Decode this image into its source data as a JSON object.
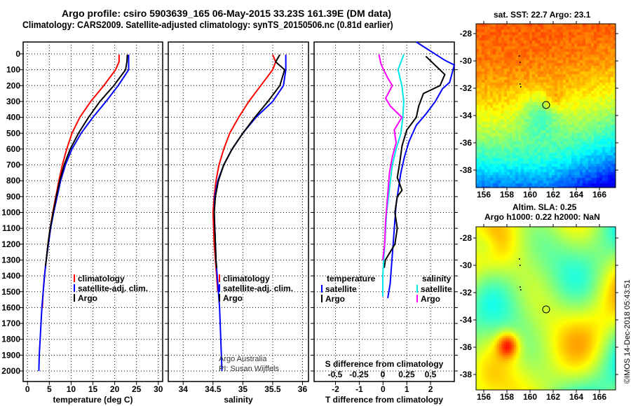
{
  "title_line1": "Argo profile: csiro 5903639_165 06-May-2015 33.23S 161.39E (DM data)",
  "title_line2": "Climatology: CARS2009. Satellite-adjusted climatology: synTS_20150506.nc (0.81d earlier)",
  "colors": {
    "climatology": "#ff0000",
    "satellite": "#0000ff",
    "argo": "#000000",
    "sal_satellite": "#00e5e5",
    "sal_argo": "#ff00ff"
  },
  "chart_data": [
    {
      "type": "line",
      "title": "temperature",
      "xlabel": "temperature (deg C)",
      "ylabel": "",
      "xlim": [
        -1,
        31
      ],
      "ylim": [
        2130,
        -75
      ],
      "xticks": [
        0,
        5,
        10,
        15,
        20,
        25,
        30
      ],
      "yticks": [
        0,
        100,
        200,
        300,
        400,
        500,
        600,
        700,
        800,
        900,
        1000,
        1100,
        1200,
        1300,
        1400,
        1500,
        1600,
        1700,
        1800,
        1900,
        2000
      ],
      "legend": [
        "climatology",
        "satellite-adj. clim.",
        "Argo"
      ],
      "series": [
        {
          "name": "climatology",
          "color": "#ff0000",
          "points": [
            [
              21,
              5
            ],
            [
              21,
              50
            ],
            [
              20.2,
              100
            ],
            [
              17.5,
              200
            ],
            [
              14.5,
              300
            ],
            [
              12,
              400
            ],
            [
              10.2,
              500
            ],
            [
              9,
              600
            ],
            [
              8,
              700
            ],
            [
              7.2,
              800
            ],
            [
              6.5,
              900
            ],
            [
              5.8,
              1000
            ],
            [
              5.2,
              1100
            ],
            [
              4.7,
              1200
            ],
            [
              4.3,
              1300
            ],
            [
              3.9,
              1400
            ],
            [
              3.6,
              1500
            ],
            [
              3.4,
              1600
            ]
          ]
        },
        {
          "name": "satellite-adj. clim.",
          "color": "#0000ff",
          "points": [
            [
              23.2,
              5
            ],
            [
              23.2,
              100
            ],
            [
              20.8,
              200
            ],
            [
              18,
              300
            ],
            [
              15,
              400
            ],
            [
              12.3,
              500
            ],
            [
              10.2,
              600
            ],
            [
              8.7,
              700
            ],
            [
              7.6,
              800
            ],
            [
              6.8,
              900
            ],
            [
              6,
              1000
            ],
            [
              5.3,
              1100
            ],
            [
              4.8,
              1200
            ],
            [
              4.3,
              1300
            ],
            [
              3.9,
              1400
            ],
            [
              3.6,
              1500
            ],
            [
              3.3,
              1600
            ],
            [
              3.1,
              1700
            ],
            [
              2.9,
              1800
            ],
            [
              2.7,
              1900
            ],
            [
              2.6,
              2000
            ]
          ]
        },
        {
          "name": "Argo",
          "color": "#000000",
          "points": [
            [
              22.9,
              5
            ],
            [
              22.8,
              50
            ],
            [
              22.5,
              100
            ],
            [
              19.8,
              200
            ],
            [
              16.6,
              300
            ],
            [
              14,
              400
            ],
            [
              11.7,
              500
            ],
            [
              9.8,
              600
            ],
            [
              8.4,
              700
            ],
            [
              7.4,
              800
            ],
            [
              6.6,
              900
            ],
            [
              5.9,
              1000
            ],
            [
              5.2,
              1100
            ],
            [
              4.7,
              1200
            ],
            [
              4.3,
              1300
            ],
            [
              4.1,
              1340
            ]
          ]
        }
      ]
    },
    {
      "type": "line",
      "title": "salinity",
      "xlabel": "salinity",
      "xlim": [
        33.75,
        36.1
      ],
      "ylim": [
        2130,
        -75
      ],
      "xticks": [
        34,
        34.5,
        35,
        35.5,
        36
      ],
      "legend": [
        "climatology",
        "satellite-adj. clim.",
        "Argo"
      ],
      "annotation": [
        "Argo Australia",
        "PI: Susan Wijffels"
      ],
      "series": [
        {
          "name": "climatology",
          "color": "#ff0000",
          "points": [
            [
              35.5,
              5
            ],
            [
              35.55,
              50
            ],
            [
              35.5,
              100
            ],
            [
              35.3,
              200
            ],
            [
              35.1,
              300
            ],
            [
              34.93,
              400
            ],
            [
              34.78,
              500
            ],
            [
              34.68,
              600
            ],
            [
              34.6,
              700
            ],
            [
              34.55,
              800
            ],
            [
              34.52,
              900
            ],
            [
              34.5,
              1000
            ],
            [
              34.51,
              1100
            ],
            [
              34.52,
              1200
            ],
            [
              34.54,
              1300
            ],
            [
              34.56,
              1400
            ],
            [
              34.58,
              1500
            ]
          ]
        },
        {
          "name": "satellite-adj. clim.",
          "color": "#0000ff",
          "points": [
            [
              35.72,
              5
            ],
            [
              35.72,
              100
            ],
            [
              35.68,
              200
            ],
            [
              35.5,
              300
            ],
            [
              35.22,
              400
            ],
            [
              35.0,
              500
            ],
            [
              34.82,
              600
            ],
            [
              34.68,
              700
            ],
            [
              34.58,
              800
            ],
            [
              34.53,
              900
            ],
            [
              34.52,
              1000
            ],
            [
              34.53,
              1100
            ],
            [
              34.54,
              1200
            ],
            [
              34.55,
              1300
            ],
            [
              34.57,
              1400
            ],
            [
              34.59,
              1500
            ],
            [
              34.61,
              1600
            ],
            [
              34.62,
              1700
            ],
            [
              34.63,
              1800
            ],
            [
              34.64,
              1900
            ],
            [
              34.65,
              2000
            ]
          ]
        },
        {
          "name": "Argo",
          "color": "#000000",
          "points": [
            [
              35.62,
              5
            ],
            [
              35.55,
              50
            ],
            [
              35.7,
              100
            ],
            [
              35.62,
              200
            ],
            [
              35.42,
              300
            ],
            [
              35.2,
              400
            ],
            [
              35.0,
              500
            ],
            [
              34.82,
              600
            ],
            [
              34.68,
              700
            ],
            [
              34.59,
              800
            ],
            [
              34.54,
              900
            ],
            [
              34.52,
              1000
            ],
            [
              34.53,
              1100
            ],
            [
              34.54,
              1200
            ],
            [
              34.55,
              1300
            ],
            [
              34.56,
              1350
            ]
          ]
        }
      ]
    },
    {
      "type": "line",
      "title": "difference from climatology",
      "xlabel": "T difference from climatology",
      "x2label": "S difference from climatology",
      "xlim": [
        -2.9,
        3.0
      ],
      "x2lim": [
        -0.72,
        0.75
      ],
      "ylim": [
        2130,
        -75
      ],
      "xticks": [
        -2,
        -1,
        0,
        1,
        2
      ],
      "x2ticks": [
        -0.5,
        -0.25,
        0,
        0.25,
        0.5
      ],
      "x2ticklabels": [
        "-0.5",
        "-0.25",
        "0",
        "0.25",
        "0.5"
      ],
      "legend_t": {
        "title": "temperature",
        "items": [
          "satellite",
          "Argo"
        ]
      },
      "legend_s": {
        "title": "salinity",
        "items": [
          "satellite",
          "Argo"
        ]
      },
      "series": [
        {
          "name": "T satellite",
          "axis": "T",
          "color": "#0000ff",
          "points": [
            [
              1.4,
              -75
            ],
            [
              2.6,
              40
            ],
            [
              3,
              70
            ],
            [
              2.8,
              180
            ],
            [
              2.5,
              220
            ],
            [
              2.2,
              300
            ],
            [
              1.8,
              380
            ],
            [
              1.4,
              450
            ],
            [
              1.1,
              550
            ],
            [
              0.9,
              650
            ],
            [
              0.75,
              750
            ],
            [
              0.65,
              850
            ],
            [
              0.55,
              950
            ],
            [
              0.5,
              1050
            ],
            [
              0.45,
              1150
            ],
            [
              0.4,
              1250
            ],
            [
              0.35,
              1350
            ],
            [
              0.3,
              1450
            ],
            [
              0.2,
              1540
            ]
          ]
        },
        {
          "name": "T Argo",
          "axis": "T",
          "color": "#000000",
          "points": [
            [
              1.8,
              15
            ],
            [
              2.6,
              130
            ],
            [
              2.4,
              200
            ],
            [
              1.7,
              250
            ],
            [
              1.5,
              330
            ],
            [
              1.4,
              400
            ],
            [
              1.0,
              480
            ],
            [
              0.8,
              580
            ],
            [
              0.7,
              690
            ],
            [
              0.6,
              780
            ],
            [
              0.8,
              860
            ],
            [
              0.6,
              900
            ],
            [
              0.5,
              1000
            ],
            [
              0.6,
              1100
            ],
            [
              0.5,
              1200
            ],
            [
              0.1,
              1300
            ],
            [
              0.05,
              1350
            ]
          ]
        },
        {
          "name": "S satellite",
          "axis": "S",
          "color": "#00e5e5",
          "points": [
            [
              0.22,
              5
            ],
            [
              0.16,
              100
            ],
            [
              0.2,
              200
            ],
            [
              0.22,
              300
            ],
            [
              0.21,
              400
            ],
            [
              0.19,
              500
            ],
            [
              0.14,
              600
            ],
            [
              0.1,
              700
            ],
            [
              0.08,
              800
            ],
            [
              0.06,
              900
            ],
            [
              0.04,
              1000
            ],
            [
              0.03,
              1100
            ],
            [
              0.02,
              1200
            ],
            [
              0.01,
              1300
            ],
            [
              0.0,
              1400
            ],
            [
              0.0,
              1530
            ]
          ]
        },
        {
          "name": "S Argo",
          "axis": "S",
          "color": "#ff00ff",
          "points": [
            [
              -0.04,
              5
            ],
            [
              -0.02,
              60
            ],
            [
              0.0,
              90
            ],
            [
              0.05,
              150
            ],
            [
              0.1,
              200
            ],
            [
              0.03,
              280
            ],
            [
              0.08,
              330
            ],
            [
              0.2,
              400
            ],
            [
              0.12,
              480
            ],
            [
              0.14,
              560
            ],
            [
              0.1,
              650
            ],
            [
              0.07,
              750
            ],
            [
              0.05,
              900
            ],
            [
              0.03,
              1050
            ],
            [
              0.02,
              1200
            ],
            [
              0.0,
              1300
            ]
          ]
        }
      ]
    }
  ],
  "maps": [
    {
      "title": "sat. SST: 22.7 Argo: 23.1",
      "xticks": [
        "156",
        "158",
        "160",
        "162",
        "164",
        "166"
      ],
      "yticks": [
        "-28",
        "-30",
        "-32",
        "-34",
        "-36",
        "-38"
      ]
    },
    {
      "title_line1": "Altim. SLA: 0.25",
      "title_line2": "Argo h1000: 0.22 h2000: NaN",
      "xticks": [
        "156",
        "158",
        "160",
        "162",
        "164",
        "166"
      ],
      "yticks": [
        "-28",
        "-30",
        "-32",
        "-34",
        "-36",
        "-38"
      ]
    }
  ],
  "float_position": {
    "lon": 161.39,
    "lat": -33.23
  },
  "side_label": "©IMOS 14-Dec-2018 05:43:51"
}
